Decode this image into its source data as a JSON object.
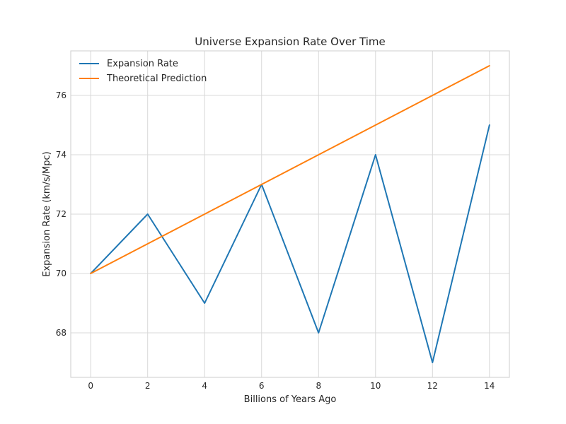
{
  "chart_data": {
    "type": "line",
    "title": "Universe Expansion Rate Over Time",
    "xlabel": "Billions of Years Ago",
    "ylabel": "Expansion Rate (km/s/Mpc)",
    "xlim": [
      -0.7,
      14.7
    ],
    "ylim": [
      66.5,
      77.5
    ],
    "grid": true,
    "legend_position": "top-left",
    "x_ticks": [
      0,
      2,
      4,
      6,
      8,
      10,
      12,
      14
    ],
    "y_ticks": [
      68,
      70,
      72,
      74,
      76
    ],
    "series": [
      {
        "name": "Expansion Rate",
        "color": "#1f77b4",
        "x": [
          0,
          2,
          4,
          6,
          8,
          10,
          12,
          14
        ],
        "y": [
          70,
          72,
          69,
          73,
          68,
          74,
          67,
          75
        ]
      },
      {
        "name": "Theoretical Prediction",
        "color": "#ff7f0e",
        "x": [
          0,
          2,
          4,
          6,
          8,
          10,
          12,
          14
        ],
        "y": [
          70,
          71,
          72,
          73,
          74,
          75,
          76,
          77
        ]
      }
    ]
  }
}
